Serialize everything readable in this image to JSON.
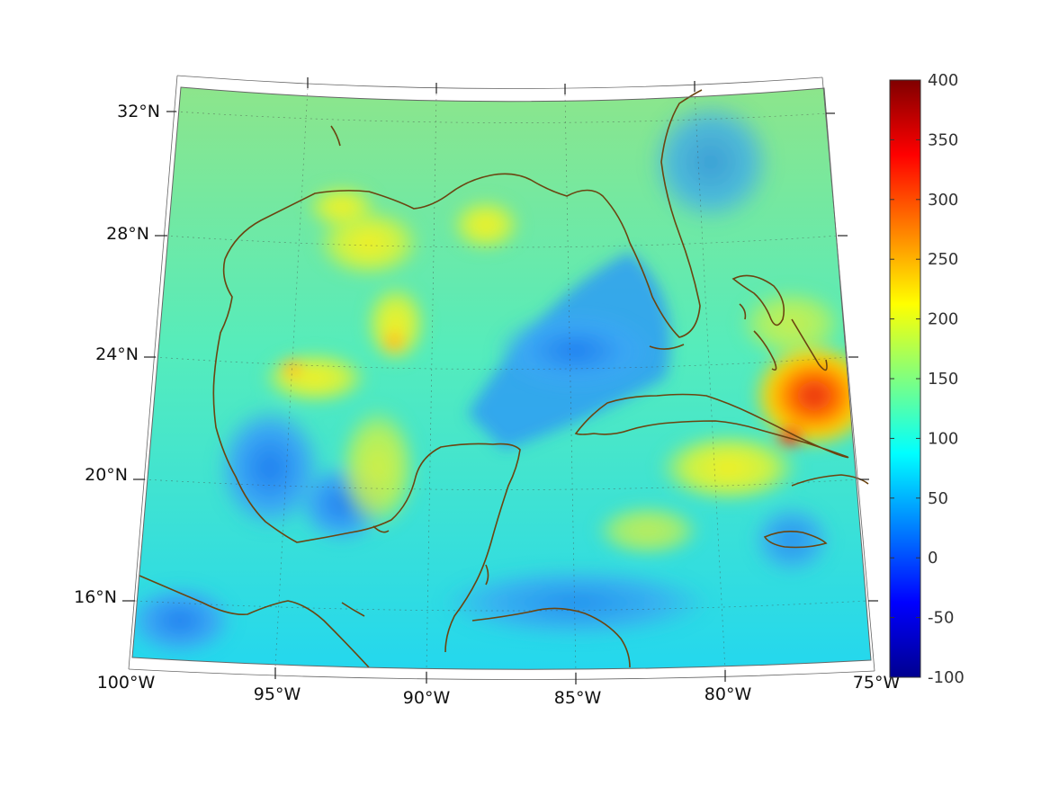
{
  "map": {
    "lat_labels": [
      "32°N",
      "28°N",
      "24°N",
      "20°N",
      "16°N"
    ],
    "lon_labels": [
      "100°W",
      "95°W",
      "90°W",
      "85°W",
      "80°W",
      "75°W"
    ],
    "coastline_color": "#6b4410",
    "colormap": "jet"
  },
  "colorbar": {
    "min": -100,
    "max": 400,
    "tick_labels": [
      "400",
      "350",
      "300",
      "250",
      "200",
      "150",
      "100",
      "50",
      "0",
      "-50",
      "-100"
    ]
  }
}
